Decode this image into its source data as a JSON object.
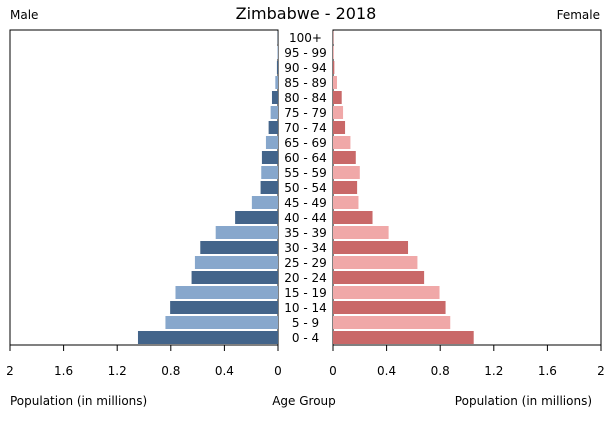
{
  "chart_data": {
    "type": "bar",
    "title": "Zimbabwe - 2018",
    "left_label": "Male",
    "right_label": "Female",
    "xlabel_left": "Population (in millions)",
    "xlabel_center": "Age Group",
    "xlabel_right": "Population (in millions)",
    "xlim": [
      0,
      2
    ],
    "tick_labels": [
      "0",
      "0.4",
      "0.8",
      "1.2",
      "1.6",
      "2"
    ],
    "tick_values": [
      0,
      0.4,
      0.8,
      1.2,
      1.6,
      2
    ],
    "categories": [
      "100+",
      "95 - 99",
      "90 - 94",
      "85 - 89",
      "80 - 84",
      "75 - 79",
      "70 - 74",
      "65 - 69",
      "60 - 64",
      "55 - 59",
      "50 - 54",
      "45 - 49",
      "40 - 44",
      "35 - 39",
      "30 - 34",
      "25 - 29",
      "20 - 24",
      "15 - 19",
      "10 - 14",
      "5 - 9",
      "0 - 4"
    ],
    "series": [
      {
        "name": "Male",
        "color_dark": "#43648a",
        "color_light": "#87a7cc",
        "values": [
          0.002,
          0.004,
          0.008,
          0.02,
          0.045,
          0.055,
          0.07,
          0.09,
          0.12,
          0.125,
          0.13,
          0.195,
          0.32,
          0.465,
          0.58,
          0.62,
          0.645,
          0.765,
          0.805,
          0.84,
          1.045
        ]
      },
      {
        "name": "Female",
        "color_dark": "#c96868",
        "color_light": "#f0a8a8",
        "values": [
          0.003,
          0.006,
          0.01,
          0.03,
          0.065,
          0.075,
          0.09,
          0.13,
          0.17,
          0.2,
          0.18,
          0.19,
          0.295,
          0.415,
          0.56,
          0.63,
          0.68,
          0.795,
          0.84,
          0.875,
          1.05
        ]
      }
    ]
  }
}
